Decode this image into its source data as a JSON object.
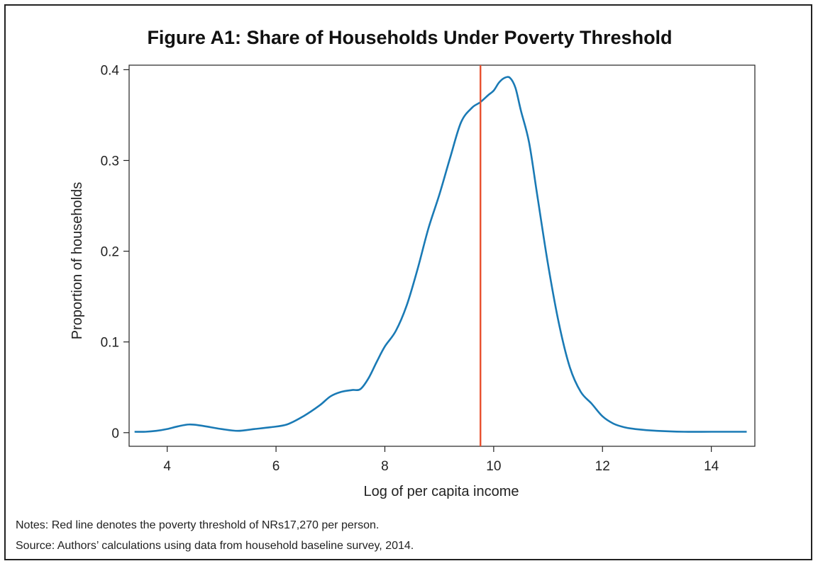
{
  "figure": {
    "title": "Figure A1: Share of Households Under Poverty Threshold",
    "notes": "Notes: Red line denotes the poverty threshold of NRs17,270 per person.",
    "source": "Source: Authors’ calculations using data from household baseline survey, 2014."
  },
  "chart_data": {
    "type": "line",
    "title": "Figure A1: Share of Households Under Poverty Threshold",
    "xlabel": "Log of per capita income",
    "ylabel": "Proportion of households",
    "xlim": [
      3.3,
      14.8
    ],
    "ylim": [
      -0.015,
      0.405
    ],
    "x_ticks": [
      4,
      6,
      8,
      10,
      12,
      14
    ],
    "y_ticks": [
      0,
      0.1,
      0.2,
      0.3,
      0.4
    ],
    "y_tick_labels": [
      "0",
      "0.1",
      "0.2",
      "0.3",
      "0.4"
    ],
    "grid": false,
    "colors": {
      "density": "#1a7ab5",
      "threshold": "#e8502e",
      "axis": "#222222"
    },
    "series": [
      {
        "x": [
          3.4,
          3.6,
          3.8,
          4.0,
          4.2,
          4.4,
          4.6,
          4.8,
          5.0,
          5.3,
          5.6,
          5.9,
          6.2,
          6.5,
          6.8,
          7.0,
          7.2,
          7.4,
          7.55,
          7.7,
          7.85,
          8.0,
          8.2,
          8.4,
          8.6,
          8.8,
          9.0,
          9.2,
          9.4,
          9.6,
          9.75,
          9.9,
          10.0,
          10.1,
          10.2,
          10.3,
          10.4,
          10.5,
          10.65,
          10.8,
          11.0,
          11.2,
          11.4,
          11.6,
          11.8,
          12.0,
          12.2,
          12.4,
          12.6,
          13.0,
          13.5,
          14.0,
          14.65
        ],
        "y": [
          0.001,
          0.001,
          0.002,
          0.004,
          0.007,
          0.009,
          0.008,
          0.006,
          0.004,
          0.002,
          0.004,
          0.006,
          0.009,
          0.018,
          0.03,
          0.04,
          0.045,
          0.047,
          0.048,
          0.06,
          0.078,
          0.095,
          0.112,
          0.14,
          0.18,
          0.225,
          0.262,
          0.303,
          0.342,
          0.358,
          0.364,
          0.372,
          0.377,
          0.386,
          0.391,
          0.391,
          0.38,
          0.355,
          0.32,
          0.262,
          0.185,
          0.12,
          0.072,
          0.045,
          0.032,
          0.018,
          0.01,
          0.006,
          0.004,
          0.002,
          0.001,
          0.001,
          0.001
        ]
      }
    ],
    "threshold_x": 9.757
  }
}
